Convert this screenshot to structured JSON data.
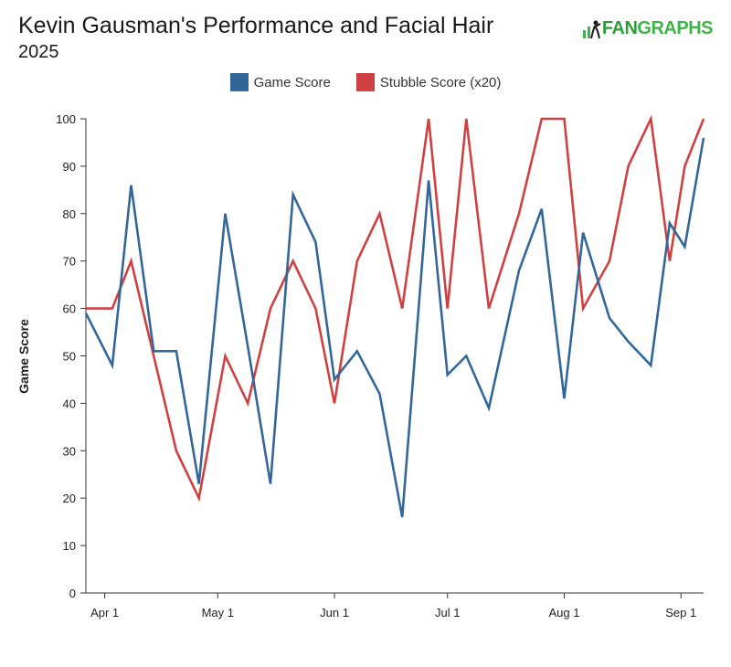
{
  "header": {
    "title": "Kevin Gausman's Performance and Facial Hair",
    "subtitle": "2025",
    "logo_fan": "FAN",
    "logo_graphs": "GRAPHS",
    "logo_icon": "batter-icon"
  },
  "colors": {
    "game_score": "#336699",
    "stubble_score": "#d04040",
    "axis": "#333333",
    "logo_green": "#3db34a"
  },
  "chart_data": {
    "type": "line",
    "ylabel": "Game Score",
    "xlabel": "",
    "ylim": [
      0,
      100
    ],
    "yticks": [
      0,
      10,
      20,
      30,
      40,
      50,
      60,
      70,
      80,
      90,
      100
    ],
    "x_domain": [
      "2025-03-27",
      "2025-09-07"
    ],
    "xticks": [
      {
        "date": "2025-04-01",
        "label": "Apr 1"
      },
      {
        "date": "2025-05-01",
        "label": "May 1"
      },
      {
        "date": "2025-06-01",
        "label": "Jun 1"
      },
      {
        "date": "2025-07-01",
        "label": "Jul 1"
      },
      {
        "date": "2025-08-01",
        "label": "Aug 1"
      },
      {
        "date": "2025-09-01",
        "label": "Sep 1"
      }
    ],
    "grid": false,
    "legend": "top-center",
    "dates": [
      "2025-03-27",
      "2025-04-03",
      "2025-04-08",
      "2025-04-14",
      "2025-04-20",
      "2025-04-26",
      "2025-05-03",
      "2025-05-09",
      "2025-05-15",
      "2025-05-21",
      "2025-05-27",
      "2025-06-01",
      "2025-06-07",
      "2025-06-13",
      "2025-06-19",
      "2025-06-26",
      "2025-07-01",
      "2025-07-06",
      "2025-07-12",
      "2025-07-20",
      "2025-07-26",
      "2025-08-01",
      "2025-08-06",
      "2025-08-13",
      "2025-08-18",
      "2025-08-24",
      "2025-08-29",
      "2025-09-02",
      "2025-09-07"
    ],
    "series": [
      {
        "name": "Game Score",
        "color": "#336699",
        "values": [
          59,
          48,
          86,
          51,
          51,
          23,
          80,
          52,
          23,
          84,
          74,
          45,
          51,
          42,
          16,
          87,
          46,
          50,
          39,
          68,
          81,
          41,
          76,
          58,
          53,
          48,
          78,
          73,
          96
        ]
      },
      {
        "name": "Stubble Score (x20)",
        "color": "#d04040",
        "values": [
          60,
          60,
          70,
          50,
          30,
          20,
          50,
          40,
          60,
          70,
          60,
          40,
          70,
          80,
          60,
          100,
          60,
          100,
          60,
          80,
          100,
          100,
          60,
          70,
          90,
          100,
          70,
          90,
          100
        ]
      }
    ]
  }
}
